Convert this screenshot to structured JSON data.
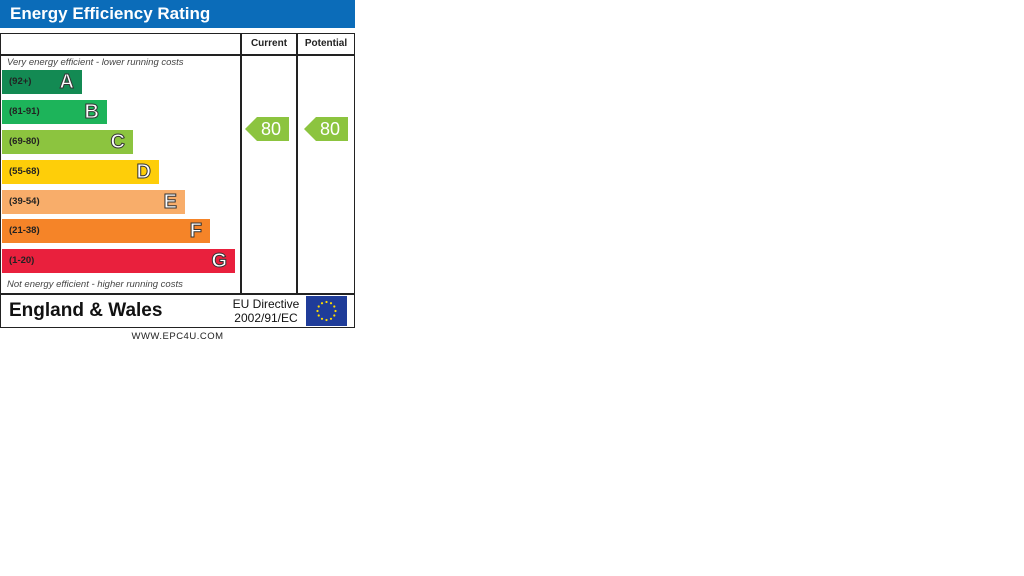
{
  "chart_data": {
    "type": "bar",
    "title": "Energy Efficiency Rating",
    "columns": [
      "Current",
      "Potential"
    ],
    "top_note": "Very energy efficient - lower running costs",
    "bottom_note": "Not energy efficient - higher running costs",
    "bands": [
      {
        "letter": "A",
        "range": "(92+)",
        "color": "#138a53"
      },
      {
        "letter": "B",
        "range": "(81-91)",
        "color": "#1db45a"
      },
      {
        "letter": "C",
        "range": "(69-80)",
        "color": "#8cc43f"
      },
      {
        "letter": "D",
        "range": "(55-68)",
        "color": "#fece09"
      },
      {
        "letter": "E",
        "range": "(39-54)",
        "color": "#f8ad6a"
      },
      {
        "letter": "F",
        "range": "(21-38)",
        "color": "#f58428"
      },
      {
        "letter": "G",
        "range": "(1-20)",
        "color": "#e9203d"
      }
    ],
    "current": {
      "value": 80,
      "band": "C",
      "color": "#8cc43f"
    },
    "potential": {
      "value": 80,
      "band": "C",
      "color": "#8cc43f"
    }
  },
  "footer": {
    "region": "England & Wales",
    "directive_line1": "EU Directive",
    "directive_line2": "2002/91/EC",
    "website": "WWW.EPC4U.COM"
  }
}
